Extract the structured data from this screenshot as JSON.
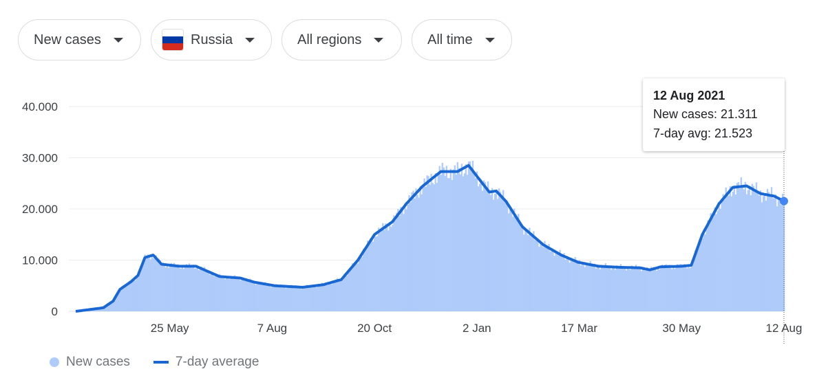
{
  "filters": [
    {
      "label": "New cases"
    },
    {
      "label": "Russia",
      "flag": "russia-flag"
    },
    {
      "label": "All regions"
    },
    {
      "label": "All time"
    }
  ],
  "tooltip": {
    "date": "12 Aug 2021",
    "new_cases": "New cases: 21.311",
    "avg": "7-day avg: 21.523"
  },
  "colors": {
    "bars": "#aecbfa",
    "line": "#1967d2",
    "dot": "#4285f4"
  },
  "chart_data": {
    "type": "bar+line",
    "y_ticks": [
      "0",
      "10.000",
      "20.000",
      "30.000",
      "40.000"
    ],
    "y_tick_values": [
      0,
      10000,
      20000,
      30000,
      40000
    ],
    "ylim": [
      0,
      40000
    ],
    "x_range": [
      "2020-03-18",
      "2021-08-12"
    ],
    "x_ticks": [
      {
        "label": "25 May",
        "date": "2020-05-25"
      },
      {
        "label": "7 Aug",
        "date": "2020-08-07"
      },
      {
        "label": "20 Oct",
        "date": "2020-10-20"
      },
      {
        "label": "2 Jan",
        "date": "2021-01-02"
      },
      {
        "label": "17 Mar",
        "date": "2021-03-17"
      },
      {
        "label": "30 May",
        "date": "2021-05-30"
      },
      {
        "label": "12 Aug",
        "date": "2021-08-12"
      }
    ],
    "grid": true,
    "legend_position": "bottom-left",
    "legend": [
      "New cases",
      "7-day average"
    ],
    "seven_day_average": [
      [
        "2020-03-18",
        0
      ],
      [
        "2020-04-07",
        700
      ],
      [
        "2020-04-14",
        2000
      ],
      [
        "2020-04-19",
        4300
      ],
      [
        "2020-04-27",
        5800
      ],
      [
        "2020-05-02",
        7000
      ],
      [
        "2020-05-07",
        10500
      ],
      [
        "2020-05-13",
        11000
      ],
      [
        "2020-05-19",
        9200
      ],
      [
        "2020-06-01",
        8800
      ],
      [
        "2020-06-13",
        8800
      ],
      [
        "2020-06-30",
        6800
      ],
      [
        "2020-07-15",
        6500
      ],
      [
        "2020-07-25",
        5700
      ],
      [
        "2020-08-09",
        5000
      ],
      [
        "2020-08-29",
        4700
      ],
      [
        "2020-09-13",
        5200
      ],
      [
        "2020-09-26",
        6200
      ],
      [
        "2020-10-08",
        10000
      ],
      [
        "2020-10-20",
        15000
      ],
      [
        "2020-11-02",
        17500
      ],
      [
        "2020-11-12",
        21000
      ],
      [
        "2020-11-24",
        24500
      ],
      [
        "2020-12-07",
        27300
      ],
      [
        "2020-12-19",
        27300
      ],
      [
        "2020-12-27",
        28500
      ],
      [
        "2021-01-06",
        25000
      ],
      [
        "2021-01-11",
        23300
      ],
      [
        "2021-01-16",
        23500
      ],
      [
        "2021-01-23",
        21500
      ],
      [
        "2021-02-04",
        16500
      ],
      [
        "2021-02-19",
        13000
      ],
      [
        "2021-03-04",
        11000
      ],
      [
        "2021-03-16",
        9600
      ],
      [
        "2021-03-31",
        8800
      ],
      [
        "2021-04-15",
        8600
      ],
      [
        "2021-04-30",
        8500
      ],
      [
        "2021-05-07",
        8100
      ],
      [
        "2021-05-15",
        8700
      ],
      [
        "2021-05-30",
        8800
      ],
      [
        "2021-06-06",
        9000
      ],
      [
        "2021-06-14",
        15000
      ],
      [
        "2021-06-26",
        21000
      ],
      [
        "2021-07-06",
        24200
      ],
      [
        "2021-07-16",
        24500
      ],
      [
        "2021-07-26",
        23000
      ],
      [
        "2021-08-05",
        22500
      ],
      [
        "2021-08-12",
        21523
      ]
    ],
    "last_point": {
      "date": "2021-08-12",
      "new_cases": 21311,
      "avg": 21523
    }
  }
}
